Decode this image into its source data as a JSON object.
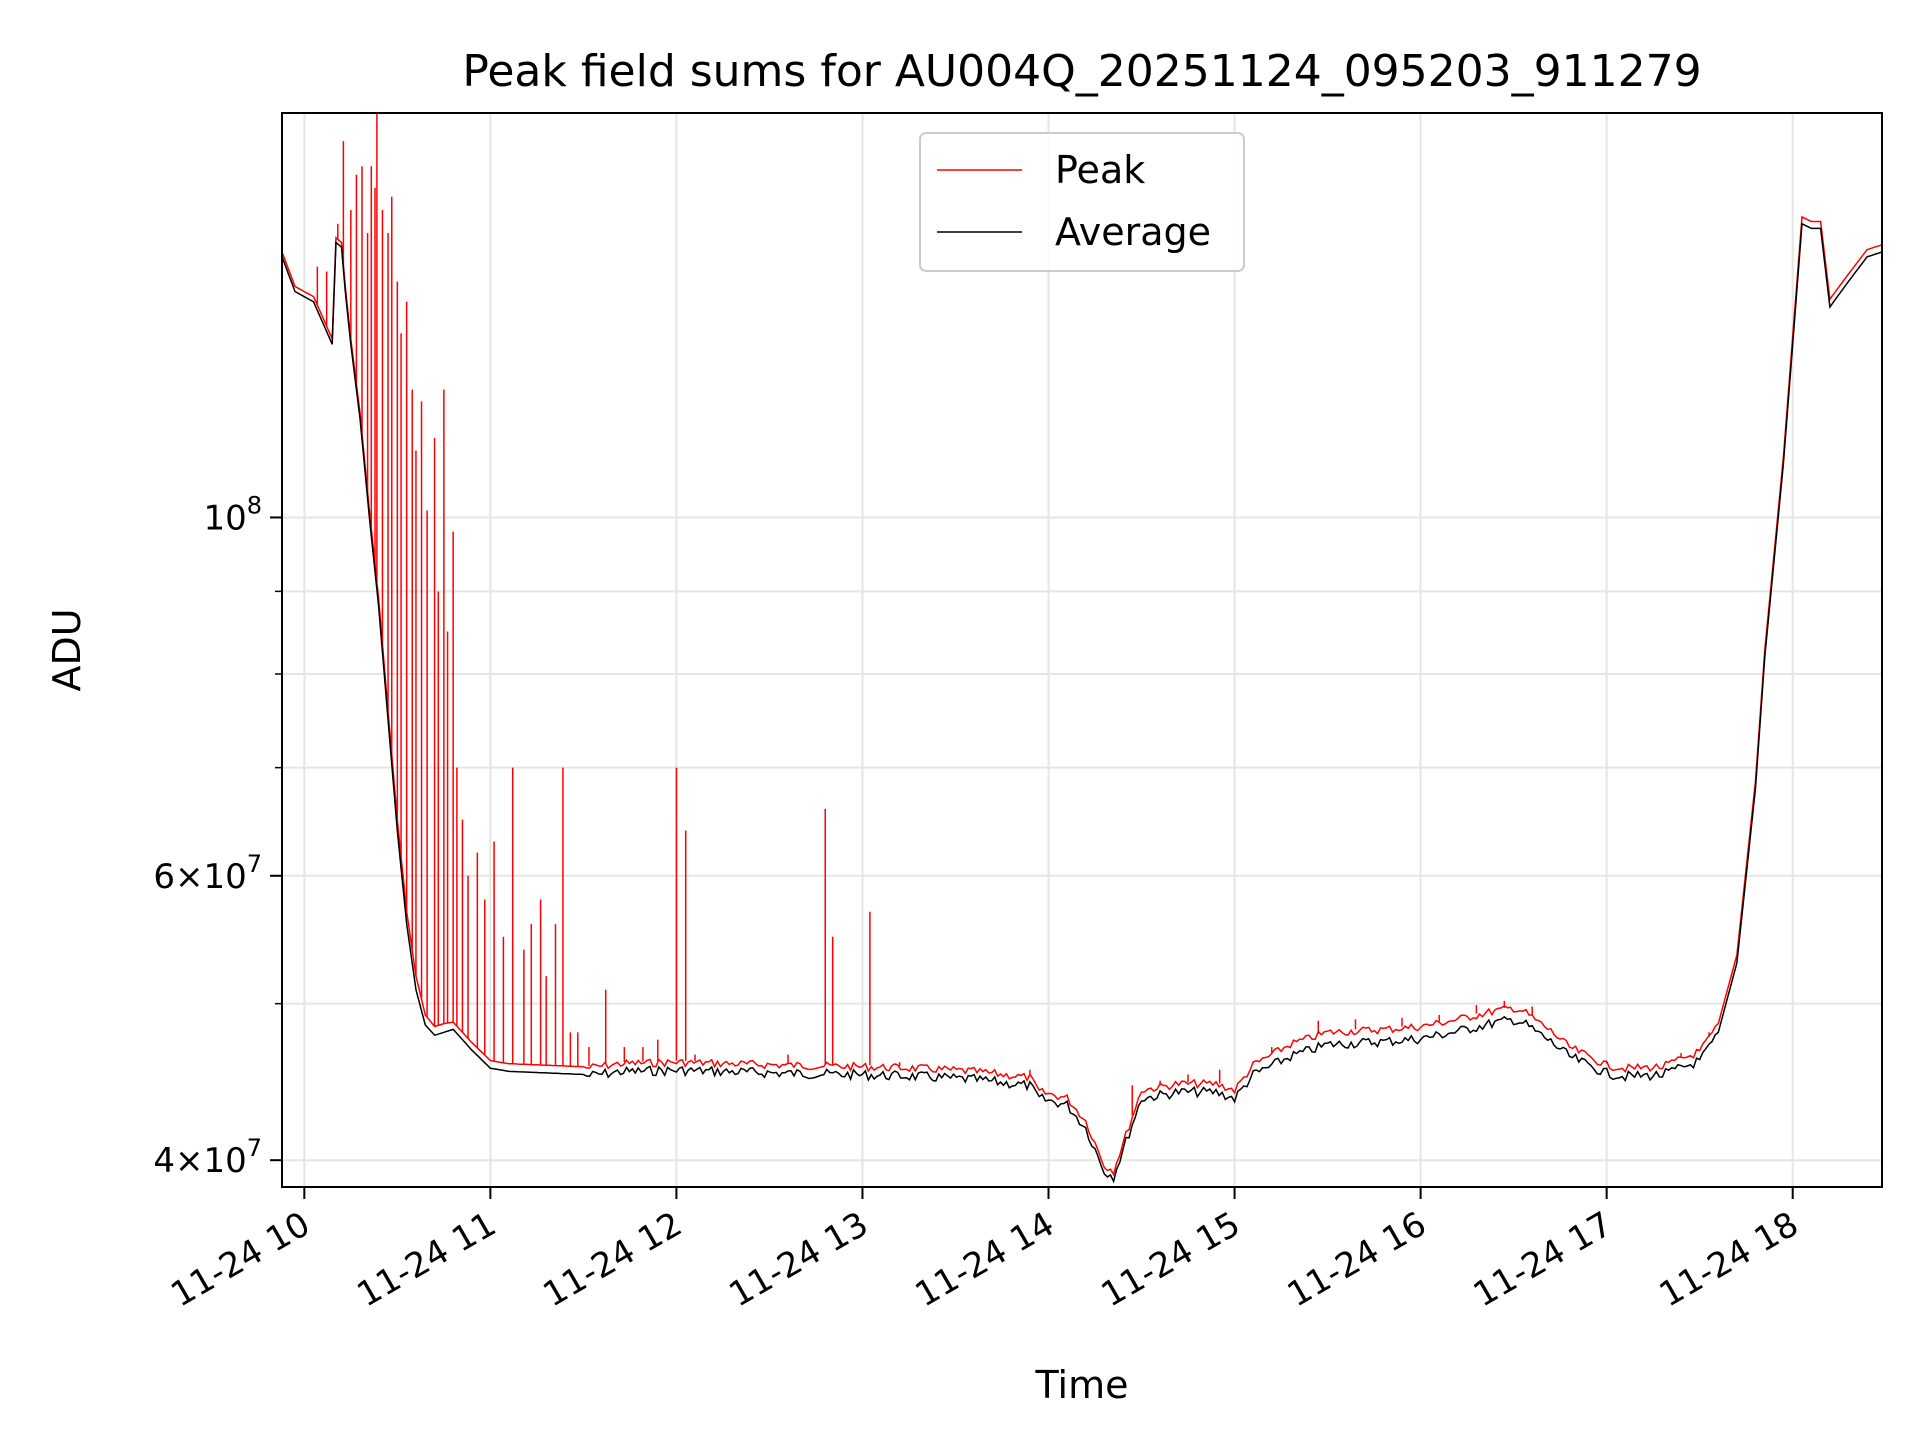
{
  "chart_data": {
    "type": "line",
    "title": "Peak field sums for AU004Q_20251124_095203_911279",
    "xlabel": "Time",
    "ylabel": "ADU",
    "yscale": "log",
    "ylim": [
      38500000,
      178000000
    ],
    "xlim": [
      9.88,
      18.48
    ],
    "grid": true,
    "legend": {
      "position": "upper center",
      "entries": [
        {
          "name": "Peak",
          "color": "#ff0000"
        },
        {
          "name": "Average",
          "color": "#000000"
        }
      ]
    },
    "x_ticks": [
      {
        "value": 10,
        "label": "11-24 10"
      },
      {
        "value": 11,
        "label": "11-24 11"
      },
      {
        "value": 12,
        "label": "11-24 12"
      },
      {
        "value": 13,
        "label": "11-24 13"
      },
      {
        "value": 14,
        "label": "11-24 14"
      },
      {
        "value": 15,
        "label": "11-24 15"
      },
      {
        "value": 16,
        "label": "11-24 16"
      },
      {
        "value": 17,
        "label": "11-24 17"
      },
      {
        "value": 18,
        "label": "11-24 18"
      }
    ],
    "y_major_ticks": [
      {
        "value": 40000000,
        "base": "4",
        "exp": "7"
      },
      {
        "value": 60000000,
        "base": "6",
        "exp": "7"
      },
      {
        "value": 100000000,
        "base": "",
        "exp": "8"
      }
    ],
    "y_minor_ticks": [
      50000000,
      70000000,
      80000000,
      90000000
    ],
    "series": [
      {
        "name": "Average",
        "color": "#000000",
        "x": [
          9.88,
          9.95,
          10.05,
          10.15,
          10.17,
          10.2,
          10.22,
          10.25,
          10.3,
          10.35,
          10.4,
          10.45,
          10.5,
          10.55,
          10.6,
          10.65,
          10.7,
          10.75,
          10.8,
          10.85,
          10.9,
          11.0,
          11.1,
          11.3,
          11.5,
          11.7,
          12.0,
          12.3,
          12.6,
          13.0,
          13.3,
          13.6,
          13.9,
          13.95,
          14.1,
          14.2,
          14.3,
          14.35,
          14.5,
          14.7,
          14.9,
          15.0,
          15.1,
          15.3,
          15.5,
          15.8,
          16.0,
          16.2,
          16.4,
          16.5,
          16.55,
          16.7,
          16.8,
          17.0,
          17.1,
          17.3,
          17.5,
          17.6,
          17.7,
          17.8,
          17.85,
          17.95,
          18.0,
          18.05,
          18.1,
          18.15,
          18.2,
          18.22,
          18.3,
          18.4,
          18.48
        ],
        "values": [
          145000000,
          138000000,
          136000000,
          128000000,
          148000000,
          147000000,
          138000000,
          128000000,
          115000000,
          100000000,
          88000000,
          75000000,
          64000000,
          56000000,
          51000000,
          48500000,
          47800000,
          48000000,
          48200000,
          47500000,
          46800000,
          45600000,
          45400000,
          45300000,
          45200000,
          45500000,
          45600000,
          45500000,
          45400000,
          45300000,
          45200000,
          45000000,
          44600000,
          43800000,
          43400000,
          42000000,
          39500000,
          39200000,
          43800000,
          44200000,
          44200000,
          43800000,
          45300000,
          46500000,
          47300000,
          47500000,
          47700000,
          48200000,
          48800000,
          49000000,
          48800000,
          47500000,
          46500000,
          45400000,
          45200000,
          45300000,
          46200000,
          48000000,
          53000000,
          68000000,
          82000000,
          108000000,
          128000000,
          152000000,
          151000000,
          151000000,
          135000000,
          136000000,
          140000000,
          145000000,
          146000000
        ]
      },
      {
        "name": "Peak",
        "color": "#ff0000",
        "x": [
          9.88,
          9.95,
          10.05,
          10.15,
          10.17,
          10.2,
          10.22,
          10.25,
          10.3,
          10.35,
          10.4,
          10.45,
          10.5,
          10.55,
          10.6,
          10.65,
          10.7,
          10.75,
          10.8,
          10.85,
          10.9,
          11.0,
          11.1,
          11.3,
          11.5,
          11.7,
          12.0,
          12.3,
          12.6,
          13.0,
          13.3,
          13.6,
          13.9,
          13.95,
          14.1,
          14.2,
          14.3,
          14.35,
          14.5,
          14.7,
          14.9,
          15.0,
          15.1,
          15.3,
          15.5,
          15.8,
          16.0,
          16.2,
          16.4,
          16.5,
          16.55,
          16.7,
          16.8,
          17.0,
          17.1,
          17.3,
          17.5,
          17.6,
          17.7,
          17.8,
          17.85,
          17.95,
          18.0,
          18.05,
          18.1,
          18.15,
          18.2,
          18.22,
          18.3,
          18.4,
          18.48
        ],
        "values": [
          146000000,
          139000000,
          137000000,
          129000000,
          149000000,
          148000000,
          139000000,
          129000000,
          116000000,
          101000000,
          89000000,
          76000000,
          65000000,
          57000000,
          52000000,
          49200000,
          48400000,
          48600000,
          48700000,
          48000000,
          47300000,
          46100000,
          45900000,
          45800000,
          45700000,
          46000000,
          46100000,
          46000000,
          45900000,
          45800000,
          45700000,
          45500000,
          45100000,
          44200000,
          43800000,
          42400000,
          39800000,
          39500000,
          44300000,
          44700000,
          44700000,
          44300000,
          45900000,
          47300000,
          48100000,
          48300000,
          48500000,
          49000000,
          49600000,
          49800000,
          49600000,
          48200000,
          47100000,
          45900000,
          45700000,
          45800000,
          46800000,
          48600000,
          53600000,
          68700000,
          82800000,
          109000000,
          129500000,
          153500000,
          152500000,
          152500000,
          136500000,
          137500000,
          141500000,
          146500000,
          147500000
        ],
        "spikes": [
          [
            10.07,
            143000000
          ],
          [
            10.12,
            142000000
          ],
          [
            10.18,
            152000000
          ],
          [
            10.21,
            171000000
          ],
          [
            10.25,
            155000000
          ],
          [
            10.28,
            163000000
          ],
          [
            10.31,
            165000000
          ],
          [
            10.34,
            150000000
          ],
          [
            10.36,
            165000000
          ],
          [
            10.38,
            160000000
          ],
          [
            10.39,
            178000000
          ],
          [
            10.42,
            155000000
          ],
          [
            10.45,
            150000000
          ],
          [
            10.47,
            158000000
          ],
          [
            10.5,
            140000000
          ],
          [
            10.52,
            130000000
          ],
          [
            10.55,
            136000000
          ],
          [
            10.58,
            120000000
          ],
          [
            10.6,
            110000000
          ],
          [
            10.63,
            118000000
          ],
          [
            10.66,
            101000000
          ],
          [
            10.7,
            112000000
          ],
          [
            10.72,
            90000000
          ],
          [
            10.75,
            120000000
          ],
          [
            10.77,
            85000000
          ],
          [
            10.8,
            98000000
          ],
          [
            10.82,
            70000000
          ],
          [
            10.85,
            65000000
          ],
          [
            10.88,
            60000000
          ],
          [
            10.93,
            62000000
          ],
          [
            10.97,
            58000000
          ],
          [
            11.02,
            63000000
          ],
          [
            11.07,
            55000000
          ],
          [
            11.12,
            70000000
          ],
          [
            11.18,
            54000000
          ],
          [
            11.22,
            56000000
          ],
          [
            11.27,
            58000000
          ],
          [
            11.3,
            52000000
          ],
          [
            11.35,
            56000000
          ],
          [
            11.39,
            70000000
          ],
          [
            11.43,
            48000000
          ],
          [
            11.47,
            48000000
          ],
          [
            11.53,
            47000000
          ],
          [
            11.62,
            51000000
          ],
          [
            11.72,
            47000000
          ],
          [
            11.82,
            47000000
          ],
          [
            11.9,
            47500000
          ],
          [
            12.0,
            70000000
          ],
          [
            12.05,
            64000000
          ],
          [
            12.1,
            46500000
          ],
          [
            12.3,
            46000000
          ],
          [
            12.6,
            46500000
          ],
          [
            12.8,
            66000000
          ],
          [
            12.84,
            55000000
          ],
          [
            13.04,
            57000000
          ],
          [
            13.2,
            46000000
          ],
          [
            13.9,
            45500000
          ],
          [
            14.45,
            44500000
          ],
          [
            14.6,
            44800000
          ],
          [
            14.75,
            45200000
          ],
          [
            14.92,
            45500000
          ],
          [
            15.2,
            47000000
          ],
          [
            15.45,
            48800000
          ],
          [
            15.65,
            48900000
          ],
          [
            15.9,
            49000000
          ],
          [
            16.1,
            49200000
          ],
          [
            16.3,
            49900000
          ],
          [
            16.45,
            50200000
          ],
          [
            16.6,
            49800000
          ],
          [
            17.0,
            46000000
          ],
          [
            17.4,
            46600000
          ],
          [
            17.55,
            48000000
          ]
        ]
      }
    ]
  }
}
